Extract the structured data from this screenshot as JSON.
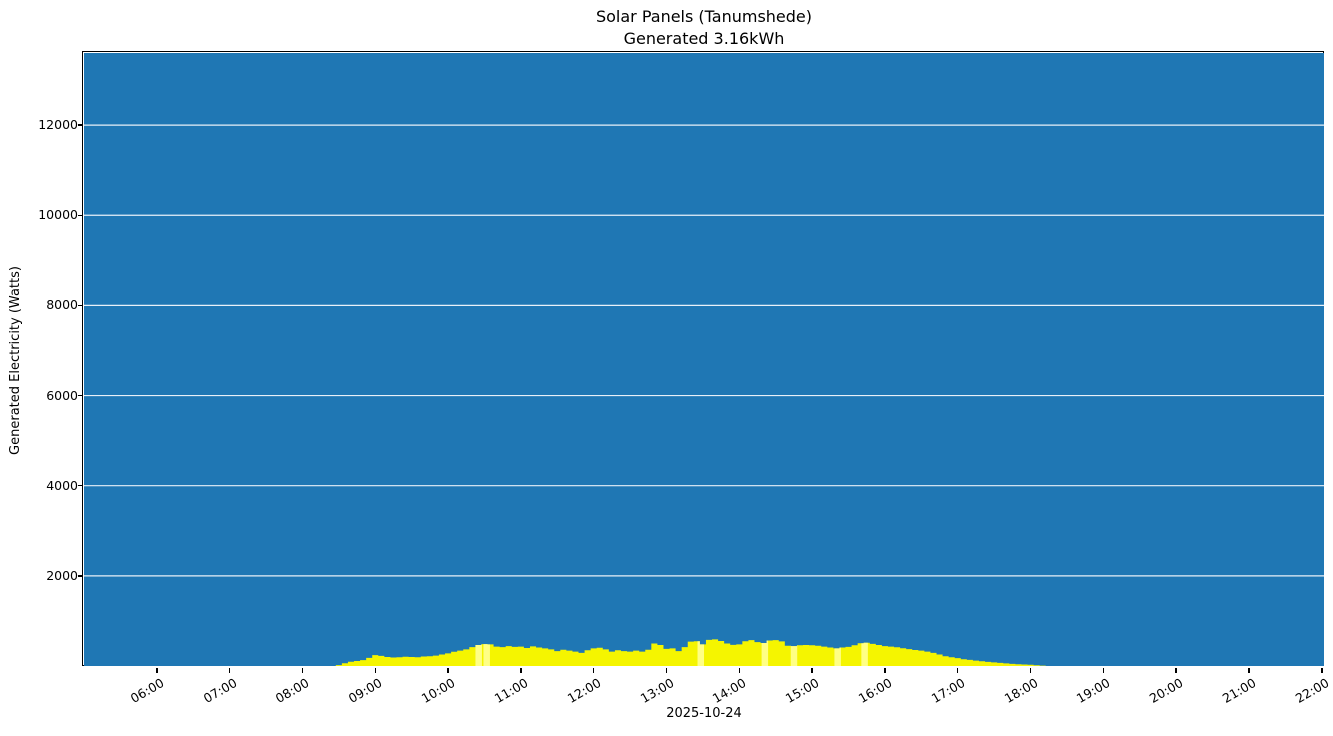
{
  "title": {
    "line1": "Solar Panels (Tanumshede)",
    "line2": "Generated 3.16kWh"
  },
  "colors": {
    "figure_bg": "#ffffff",
    "plot_bg": "#1f77b4",
    "grid": "#e8f0f8",
    "bar": "#f5f500",
    "bar_light": "#ffff85",
    "frame": "#000000",
    "text": "#000000"
  },
  "chart_data": {
    "type": "bar",
    "title": "Solar Panels (Tanumshede)",
    "subtitle": "Generated 3.16kWh",
    "total_generated_kwh": 3.16,
    "xlabel": "2025-10-24",
    "ylabel": "Generated Electricity (Watts)",
    "legend": "none",
    "grid": "horizontal",
    "xlim_hours": [
      5.0,
      22.03
    ],
    "ylim": [
      0,
      13600
    ],
    "yticks": [
      2000,
      4000,
      6000,
      8000,
      10000,
      12000
    ],
    "xticks": [
      {
        "hour": 6,
        "label": "06:00"
      },
      {
        "hour": 7,
        "label": "07:00"
      },
      {
        "hour": 8,
        "label": "08:00"
      },
      {
        "hour": 9,
        "label": "09:00"
      },
      {
        "hour": 10,
        "label": "10:00"
      },
      {
        "hour": 11,
        "label": "11:00"
      },
      {
        "hour": 12,
        "label": "12:00"
      },
      {
        "hour": 13,
        "label": "13:00"
      },
      {
        "hour": 14,
        "label": "14:00"
      },
      {
        "hour": 15,
        "label": "15:00"
      },
      {
        "hour": 16,
        "label": "16:00"
      },
      {
        "hour": 17,
        "label": "17:00"
      },
      {
        "hour": 18,
        "label": "18:00"
      },
      {
        "hour": 19,
        "label": "19:00"
      },
      {
        "hour": 20,
        "label": "20:00"
      },
      {
        "hour": 21,
        "label": "21:00"
      },
      {
        "hour": 22,
        "label": "22:00"
      }
    ],
    "light_stripe_hours": [
      10.42,
      10.53,
      13.47,
      14.35,
      14.75,
      15.35,
      15.72
    ],
    "series": [
      {
        "name": "Generated Watts",
        "step_minutes": 5,
        "times": [
          "08:30",
          "08:35",
          "08:40",
          "08:45",
          "08:50",
          "08:55",
          "09:00",
          "09:05",
          "09:10",
          "09:15",
          "09:20",
          "09:25",
          "09:30",
          "09:35",
          "09:40",
          "09:45",
          "09:50",
          "09:55",
          "10:00",
          "10:05",
          "10:10",
          "10:15",
          "10:20",
          "10:25",
          "10:30",
          "10:35",
          "10:40",
          "10:45",
          "10:50",
          "10:55",
          "11:00",
          "11:05",
          "11:10",
          "11:15",
          "11:20",
          "11:25",
          "11:30",
          "11:35",
          "11:40",
          "11:45",
          "11:50",
          "11:55",
          "12:00",
          "12:05",
          "12:10",
          "12:15",
          "12:20",
          "12:25",
          "12:30",
          "12:35",
          "12:40",
          "12:45",
          "12:50",
          "12:55",
          "13:00",
          "13:05",
          "13:10",
          "13:15",
          "13:20",
          "13:25",
          "13:30",
          "13:35",
          "13:40",
          "13:45",
          "13:50",
          "13:55",
          "14:00",
          "14:05",
          "14:10",
          "14:15",
          "14:20",
          "14:25",
          "14:30",
          "14:35",
          "14:40",
          "14:45",
          "14:50",
          "14:55",
          "15:00",
          "15:05",
          "15:10",
          "15:15",
          "15:20",
          "15:25",
          "15:30",
          "15:35",
          "15:40",
          "15:45",
          "15:50",
          "15:55",
          "16:00",
          "16:05",
          "16:10",
          "16:15",
          "16:20",
          "16:25",
          "16:30",
          "16:35",
          "16:40",
          "16:45",
          "16:50",
          "16:55",
          "17:00",
          "17:05",
          "17:10",
          "17:15",
          "17:20",
          "17:25",
          "17:30",
          "17:35",
          "17:40",
          "17:45",
          "17:50",
          "17:55",
          "18:00",
          "18:05",
          "18:10"
        ],
        "watts": [
          20,
          60,
          95,
          110,
          130,
          180,
          240,
          225,
          200,
          190,
          195,
          205,
          200,
          195,
          210,
          215,
          230,
          255,
          280,
          315,
          340,
          370,
          420,
          465,
          485,
          480,
          430,
          420,
          440,
          425,
          430,
          400,
          435,
          410,
          390,
          370,
          330,
          360,
          340,
          320,
          290,
          350,
          390,
          405,
          370,
          320,
          350,
          330,
          320,
          340,
          320,
          360,
          500,
          465,
          380,
          390,
          330,
          420,
          540,
          550,
          480,
          580,
          590,
          555,
          500,
          470,
          480,
          550,
          575,
          530,
          510,
          565,
          575,
          545,
          450,
          440,
          460,
          465,
          460,
          450,
          430,
          410,
          390,
          410,
          425,
          460,
          505,
          515,
          490,
          465,
          440,
          430,
          415,
          395,
          375,
          355,
          340,
          320,
          290,
          255,
          215,
          195,
          175,
          150,
          135,
          120,
          105,
          92,
          80,
          68,
          58,
          48,
          40,
          33,
          27,
          18,
          8
        ]
      }
    ]
  }
}
